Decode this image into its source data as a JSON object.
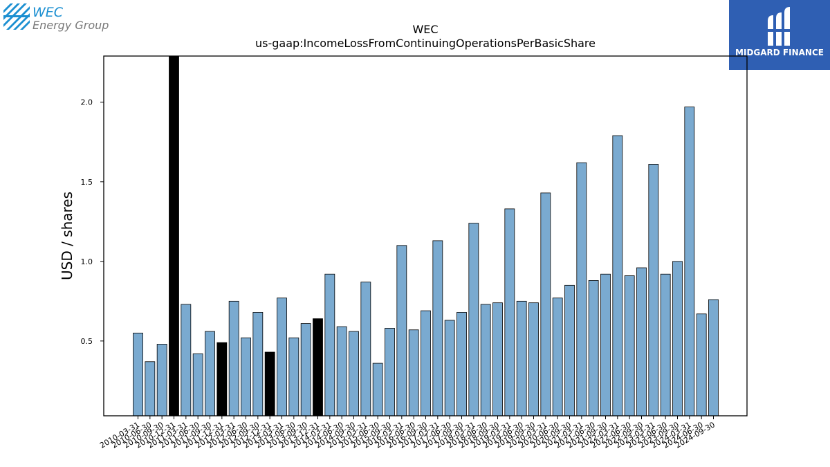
{
  "logos": {
    "company_line1": "WEC",
    "company_line2": "Energy Group",
    "sponsor": "MIDGARD FINANCE"
  },
  "chart_data": {
    "type": "bar",
    "title": "WEC",
    "subtitle": "us-gaap:IncomeLossFromContinuingOperationsPerBasicShare",
    "ylabel": "USD / shares",
    "xlabel": "",
    "ylim": [
      0.03,
      2.29
    ],
    "yticks": [
      0.5,
      1.0,
      1.5,
      2.0
    ],
    "ytick_labels": [
      "0.5",
      "1.0",
      "1.5",
      "2.0"
    ],
    "bar_color": "#7aaad0",
    "highlight_color": "#000000",
    "grid": false,
    "categories": [
      "2010-03-31",
      "2010-06-30",
      "2010-09-30",
      "2010-12-31",
      "2011-03-31",
      "2011-06-30",
      "2011-09-30",
      "2011-12-31",
      "2012-03-31",
      "2012-06-30",
      "2012-09-30",
      "2012-12-31",
      "2013-03-31",
      "2013-06-30",
      "2013-09-30",
      "2013-12-31",
      "2014-03-31",
      "2014-06-30",
      "2014-09-30",
      "2015-03-31",
      "2015-06-30",
      "2015-09-30",
      "2016-03-31",
      "2016-06-30",
      "2016-09-30",
      "2017-03-31",
      "2017-06-30",
      "2017-09-30",
      "2018-03-31",
      "2018-06-30",
      "2018-09-30",
      "2019-03-31",
      "2019-06-30",
      "2019-09-30",
      "2020-03-31",
      "2020-06-30",
      "2020-09-30",
      "2021-03-31",
      "2021-06-30",
      "2021-09-30",
      "2022-03-31",
      "2022-06-30",
      "2022-09-30",
      "2023-03-31",
      "2023-06-30",
      "2023-09-30",
      "2024-03-31",
      "2024-06-30",
      "2024-09-30"
    ],
    "values": [
      0.55,
      0.37,
      0.48,
      2.29,
      0.73,
      0.42,
      0.56,
      0.49,
      0.75,
      0.52,
      0.68,
      0.43,
      0.77,
      0.52,
      0.61,
      0.64,
      0.92,
      0.59,
      0.56,
      0.87,
      0.36,
      0.58,
      1.1,
      0.57,
      0.69,
      1.13,
      0.63,
      0.68,
      1.24,
      0.73,
      0.74,
      1.33,
      0.75,
      0.74,
      1.43,
      0.77,
      0.85,
      1.62,
      0.88,
      0.92,
      1.79,
      0.91,
      0.96,
      1.61,
      0.92,
      1.0,
      1.97,
      0.67,
      0.76
    ],
    "highlighted": [
      3,
      7,
      11,
      15
    ]
  }
}
